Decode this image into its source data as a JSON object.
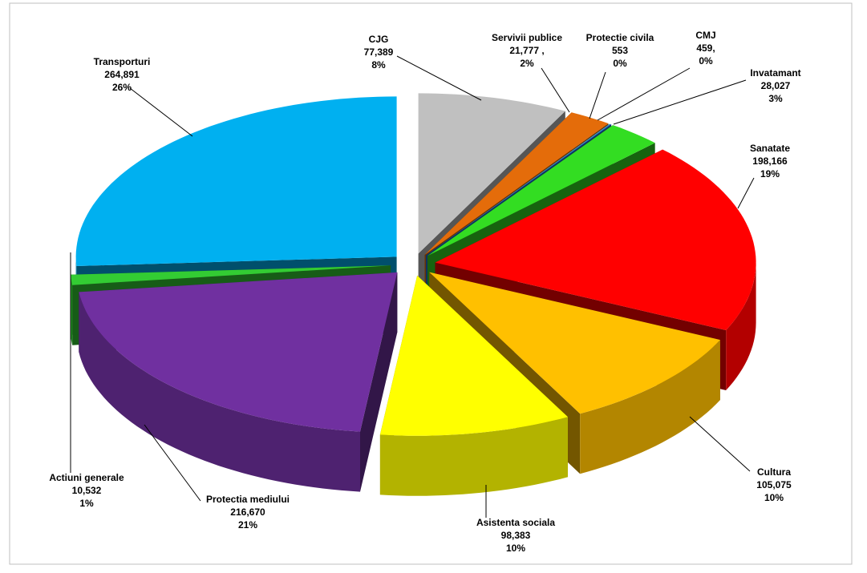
{
  "chart_data": {
    "type": "pie3d",
    "categories": [
      "CJG",
      "Servivii publice",
      "Protectie civila",
      "CMJ",
      "Invatamant",
      "Sanatate",
      "Cultura",
      "Asistenta sociala",
      "Protectia mediului",
      "Actiuni generale",
      "Transporturi"
    ],
    "values": [
      77389,
      21777,
      553,
      459,
      28027,
      198166,
      105075,
      98383,
      216670,
      10532,
      264891
    ],
    "value_labels": [
      "77,389",
      "21,777 ,",
      "553",
      "459,",
      "28,027",
      "198,166",
      "105,075",
      "98,383",
      "216,670",
      "10,532",
      "264,891"
    ],
    "percent_labels": [
      "8%",
      "2%",
      "0%",
      "0%",
      "3%",
      "19%",
      "10%",
      "10%",
      "21%",
      "1%",
      "26%"
    ],
    "colors": [
      "#c0c0c0",
      "#e46c0a",
      "#4bacc6",
      "#1f6fd0",
      "#33dd22",
      "#ff0000",
      "#ffc000",
      "#ffff00",
      "#7030a0",
      "#33cc33",
      "#00b0f0"
    ]
  }
}
